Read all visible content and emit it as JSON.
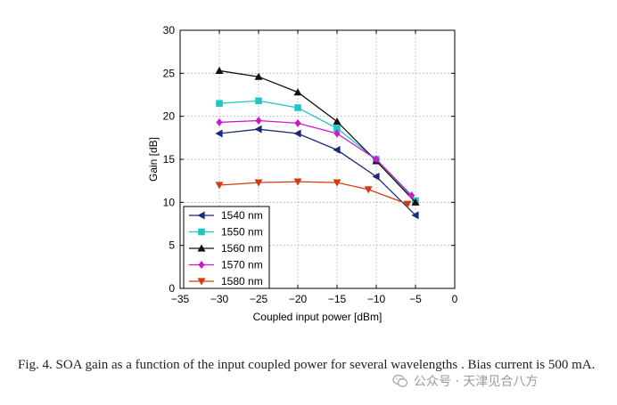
{
  "chart_data": {
    "type": "line",
    "title": "",
    "xlabel": "Coupled input power [dBm]",
    "ylabel": "Gain [dB]",
    "xlim": [
      -35,
      0
    ],
    "ylim": [
      0,
      30
    ],
    "x_ticks": [
      -35,
      -30,
      -25,
      -20,
      -15,
      -10,
      -5,
      0
    ],
    "y_ticks": [
      0,
      5,
      10,
      15,
      20,
      25,
      30
    ],
    "x_tick_labels": [
      "−35",
      "−30",
      "−25",
      "−20",
      "−15",
      "−10",
      "−5",
      "0"
    ],
    "y_tick_labels": [
      "0",
      "5",
      "10",
      "15",
      "20",
      "25",
      "30"
    ],
    "grid": true,
    "legend_position": "bottom-left",
    "series": [
      {
        "name": "1540 nm",
        "color": "#1a2a7a",
        "marker": "triangle-left",
        "x": [
          -30,
          -25,
          -20,
          -15,
          -10,
          -5
        ],
        "y": [
          18.0,
          18.5,
          18.0,
          16.1,
          13.0,
          8.5
        ]
      },
      {
        "name": "1550 nm",
        "color": "#22c4c4",
        "marker": "square",
        "x": [
          -30,
          -25,
          -20,
          -15,
          -10,
          -5
        ],
        "y": [
          21.5,
          21.8,
          21.0,
          18.6,
          15.0,
          10.2
        ]
      },
      {
        "name": "1560 nm",
        "color": "#111111",
        "marker": "triangle-up",
        "x": [
          -30,
          -25,
          -20,
          -15,
          -10,
          -5
        ],
        "y": [
          25.3,
          24.6,
          22.8,
          19.4,
          14.8,
          10.0
        ]
      },
      {
        "name": "1570 nm",
        "color": "#c81cc8",
        "marker": "diamond",
        "x": [
          -30,
          -25,
          -20,
          -15,
          -10,
          -5.5
        ],
        "y": [
          19.3,
          19.5,
          19.2,
          18.0,
          15.0,
          10.8
        ]
      },
      {
        "name": "1580 nm",
        "color": "#d43a10",
        "marker": "triangle-down",
        "x": [
          -30,
          -25,
          -20,
          -15,
          -11,
          -6
        ],
        "y": [
          12.0,
          12.3,
          12.4,
          12.3,
          11.5,
          9.8
        ]
      }
    ]
  },
  "caption": {
    "text": "Fig. 4. SOA gain as a function of the input coupled power for several wavelengths . Bias current is 500 mA."
  },
  "watermark": {
    "text": "公众号 · 天津见合八方",
    "icon": "wechat-icon"
  }
}
